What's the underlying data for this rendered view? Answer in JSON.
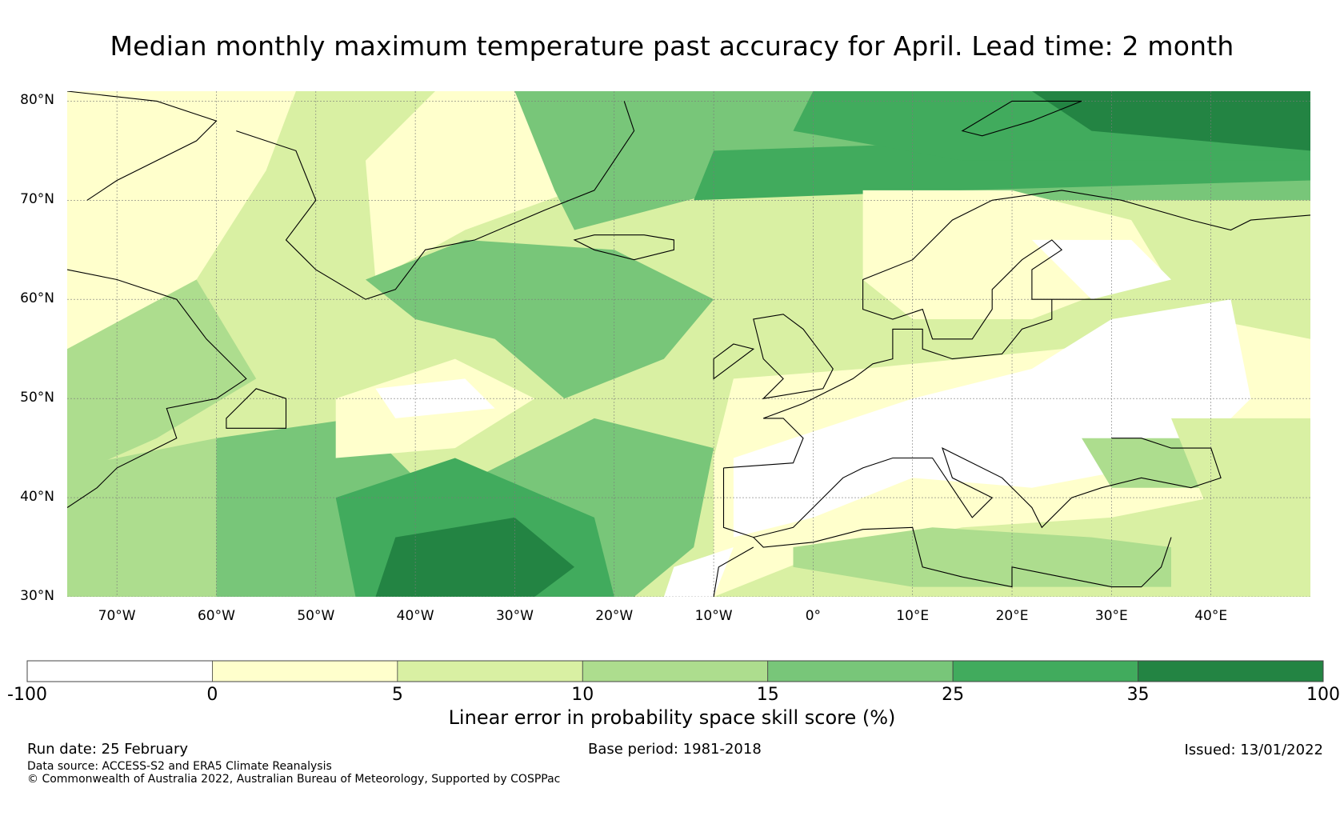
{
  "title": "Median monthly maximum temperature past accuracy for April. Lead time: 2 month",
  "map": {
    "lon_range": [
      -75,
      50
    ],
    "lat_range": [
      30,
      81
    ],
    "lat_labels": [
      "80°N",
      "70°N",
      "60°N",
      "50°N",
      "40°N",
      "30°N"
    ],
    "lat_values": [
      80,
      70,
      60,
      50,
      40,
      30
    ],
    "lon_labels": [
      "70°W",
      "60°W",
      "50°W",
      "40°W",
      "30°W",
      "20°W",
      "10°W",
      "0°",
      "10°E",
      "20°E",
      "30°E",
      "40°E"
    ],
    "lon_values": [
      -70,
      -60,
      -50,
      -40,
      -30,
      -20,
      -10,
      0,
      10,
      20,
      30,
      40
    ]
  },
  "colorbar": {
    "ticks": [
      "-100",
      "0",
      "5",
      "10",
      "15",
      "25",
      "35",
      "100"
    ],
    "colors": [
      "#ffffff",
      "#ffffcc",
      "#d9f0a3",
      "#addd8e",
      "#78c679",
      "#41ab5d",
      "#238443"
    ],
    "label": "Linear error in probability space skill score (%)"
  },
  "footer": {
    "run_date": "Run date: 25 February",
    "base_period": "Base period: 1981-2018",
    "issued": "Issued: 13/01/2022",
    "data_source": "Data source: ACCESS-S2 and ERA5 Climate Reanalysis",
    "copyright": "© Commonwealth of Australia 2022, Australian Bureau of Meteorology, Supported by COSPPac"
  }
}
